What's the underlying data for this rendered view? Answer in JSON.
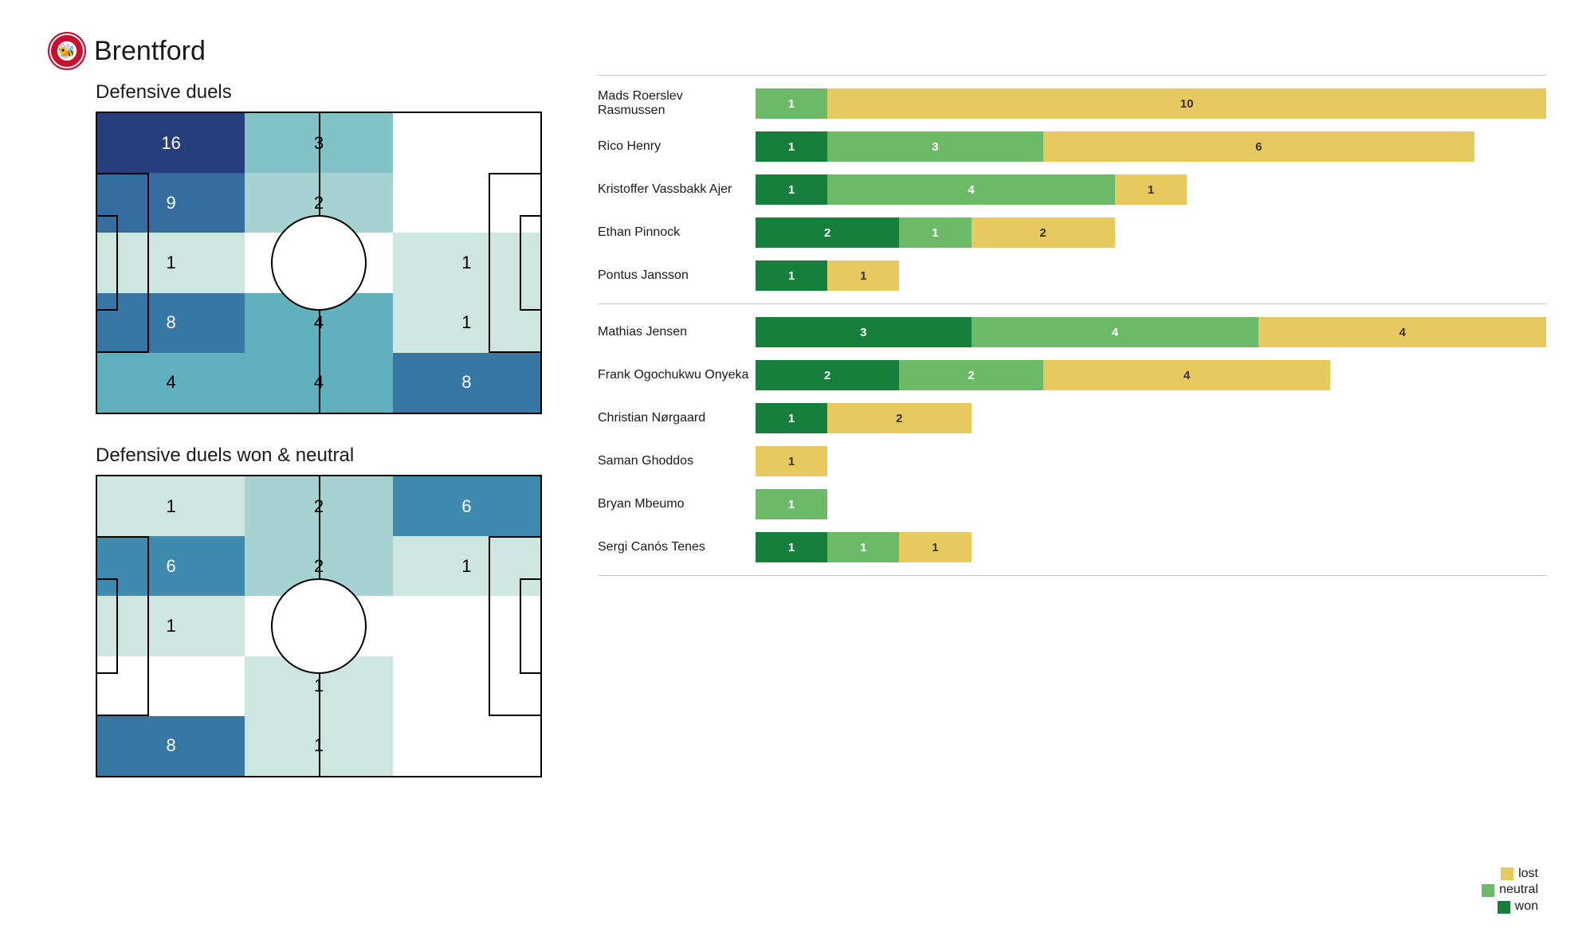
{
  "header": {
    "club_name": "Brentford",
    "badge_emoji": "🐝"
  },
  "left": {
    "section1_title": "Defensive duels",
    "section2_title": "Defensive duels won & neutral",
    "heatmap_palette": {
      "0": "#ffffff",
      "1": "#cde6e0",
      "2": "#a6d3d1",
      "3": "#81c3c6",
      "4": "#61b0bd",
      "5": "#4b9cb4",
      "6": "#3e8baf",
      "7": "#3a7fa9",
      "8": "#3876a5",
      "9": "#356d9f",
      "10": "#33659a",
      "11": "#315e95",
      "12": "#2f5790",
      "13": "#2d508b",
      "14": "#2b4a86",
      "15": "#294481",
      "16": "#273e7c"
    },
    "pitch1": {
      "rows": 5,
      "cols": 3,
      "cells": [
        {
          "r": 0,
          "c": 0,
          "v": 16
        },
        {
          "r": 0,
          "c": 1,
          "v": 3
        },
        {
          "r": 0,
          "c": 2,
          "v": 0
        },
        {
          "r": 1,
          "c": 0,
          "v": 9
        },
        {
          "r": 1,
          "c": 1,
          "v": 2
        },
        {
          "r": 1,
          "c": 2,
          "v": 0
        },
        {
          "r": 2,
          "c": 0,
          "v": 1
        },
        {
          "r": 2,
          "c": 1,
          "v": 0
        },
        {
          "r": 2,
          "c": 2,
          "v": 1
        },
        {
          "r": 3,
          "c": 0,
          "v": 8
        },
        {
          "r": 3,
          "c": 1,
          "v": 4
        },
        {
          "r": 3,
          "c": 2,
          "v": 1
        },
        {
          "r": 4,
          "c": 0,
          "v": 4
        },
        {
          "r": 4,
          "c": 1,
          "v": 4
        },
        {
          "r": 4,
          "c": 2,
          "v": 8
        }
      ]
    },
    "pitch2": {
      "rows": 5,
      "cols": 3,
      "cells": [
        {
          "r": 0,
          "c": 0,
          "v": 1
        },
        {
          "r": 0,
          "c": 1,
          "v": 2
        },
        {
          "r": 0,
          "c": 2,
          "v": 6
        },
        {
          "r": 1,
          "c": 0,
          "v": 6
        },
        {
          "r": 1,
          "c": 1,
          "v": 2
        },
        {
          "r": 1,
          "c": 2,
          "v": 1
        },
        {
          "r": 2,
          "c": 0,
          "v": 1
        },
        {
          "r": 2,
          "c": 1,
          "v": 0
        },
        {
          "r": 2,
          "c": 2,
          "v": 0
        },
        {
          "r": 3,
          "c": 0,
          "v": 0
        },
        {
          "r": 3,
          "c": 1,
          "v": 1
        },
        {
          "r": 3,
          "c": 2,
          "v": 0
        },
        {
          "r": 4,
          "c": 0,
          "v": 8
        },
        {
          "r": 4,
          "c": 1,
          "v": 1
        },
        {
          "r": 4,
          "c": 2,
          "v": 0
        }
      ]
    }
  },
  "right": {
    "x_max": 11,
    "colors": {
      "won": "#157f3b",
      "neutral": "#6cba67",
      "lost": "#e7c95f"
    },
    "legend": [
      {
        "key": "lost",
        "label": "lost"
      },
      {
        "key": "neutral",
        "label": "neutral"
      },
      {
        "key": "won",
        "label": "won"
      }
    ],
    "groups": [
      {
        "rows": [
          {
            "name": "Mads Roerslev Rasmussen",
            "won": 0,
            "neutral": 1,
            "lost": 10
          },
          {
            "name": "Rico Henry",
            "won": 1,
            "neutral": 3,
            "lost": 6
          },
          {
            "name": "Kristoffer Vassbakk Ajer",
            "won": 1,
            "neutral": 4,
            "lost": 1
          },
          {
            "name": "Ethan Pinnock",
            "won": 2,
            "neutral": 1,
            "lost": 2
          },
          {
            "name": "Pontus Jansson",
            "won": 1,
            "neutral": 0,
            "lost": 1
          }
        ]
      },
      {
        "rows": [
          {
            "name": "Mathias Jensen",
            "won": 3,
            "neutral": 4,
            "lost": 4
          },
          {
            "name": "Frank Ogochukwu Onyeka",
            "won": 2,
            "neutral": 2,
            "lost": 4
          },
          {
            "name": "Christian Nørgaard",
            "won": 1,
            "neutral": 0,
            "lost": 2
          },
          {
            "name": "Saman Ghoddos",
            "won": 0,
            "neutral": 0,
            "lost": 1
          },
          {
            "name": "Bryan Mbeumo",
            "won": 0,
            "neutral": 1,
            "lost": 0
          },
          {
            "name": "Sergi Canós Tenes",
            "won": 1,
            "neutral": 1,
            "lost": 1
          }
        ]
      }
    ]
  }
}
